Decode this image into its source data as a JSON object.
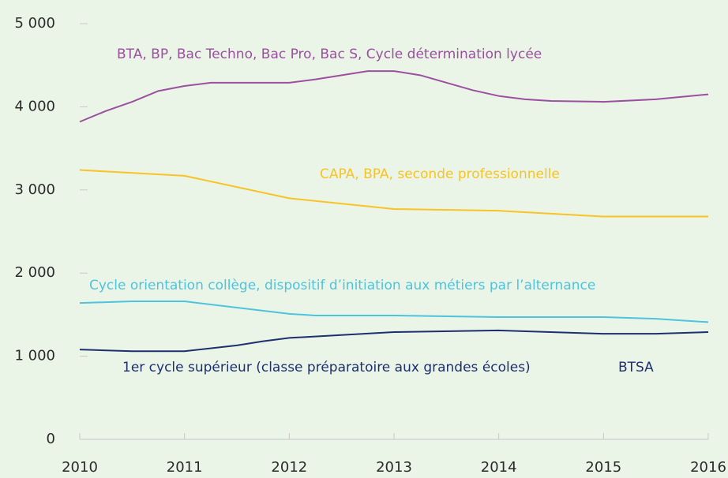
{
  "chart_data": {
    "type": "line",
    "xlim": [
      2010,
      2016
    ],
    "xticks": [
      2010,
      2011,
      2012,
      2013,
      2014,
      2015,
      2016
    ],
    "ylim": [
      0,
      5000
    ],
    "yticks": [
      0,
      {
        "value": 1000,
        "label": "1 000"
      },
      {
        "value": 2000,
        "label": "2 000"
      },
      {
        "value": 3000,
        "label": "3 000"
      },
      {
        "value": 4000,
        "label": "4 000"
      },
      {
        "value": 5000,
        "label": "5 000"
      }
    ],
    "series": [
      {
        "name": "BTA, BP, Bac Techno, Bac Pro, Bac S, Cycle détermination lycée",
        "color": "#9b4f9f",
        "x": [
          2010,
          2010.25,
          2010.5,
          2010.75,
          2011,
          2011.25,
          2012,
          2012.25,
          2012.75,
          2013,
          2013.25,
          2013.75,
          2014,
          2014.25,
          2014.5,
          2015,
          2015.5,
          2016
        ],
        "values": [
          3820,
          3950,
          4060,
          4190,
          4250,
          4290,
          4290,
          4330,
          4430,
          4430,
          4380,
          4200,
          4130,
          4090,
          4070,
          4060,
          4090,
          4150
        ]
      },
      {
        "name": "CAPA, BPA, seconde professionnelle",
        "color": "#f7c325",
        "x": [
          2010,
          2011,
          2012,
          2013,
          2014,
          2015,
          2016
        ],
        "values": [
          3240,
          3170,
          2900,
          2770,
          2750,
          2680,
          2680
        ]
      },
      {
        "name": "Cycle orientation collège, dispositif d’initiation aux métiers par l’alternance",
        "color": "#4ec3dc",
        "x": [
          2010,
          2010.5,
          2011,
          2012,
          2012.25,
          2013,
          2014,
          2015,
          2015.5,
          2016
        ],
        "values": [
          1640,
          1660,
          1660,
          1510,
          1490,
          1490,
          1470,
          1470,
          1450,
          1410
        ]
      },
      {
        "name": "1er cycle supérieur (classe préparatoire aux grandes écoles)",
        "color": "#1d2f6f",
        "x": [
          2010,
          2010.5,
          2011,
          2011.5,
          2011.75,
          2012,
          2013,
          2014,
          2015,
          2015.5,
          2016
        ],
        "values": [
          1080,
          1060,
          1060,
          1130,
          1180,
          1220,
          1290,
          1310,
          1270,
          1270,
          1290
        ]
      }
    ],
    "annotations": [
      "BTSA"
    ]
  }
}
